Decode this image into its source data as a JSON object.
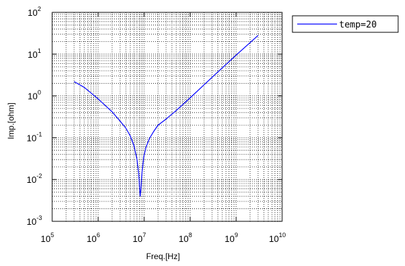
{
  "chart_data": {
    "type": "line",
    "title": "",
    "xlabel": "Freq.[Hz]",
    "ylabel": "Imp.[ohm]",
    "xscale": "log",
    "yscale": "log",
    "xlim": [
      100000,
      10000000000
    ],
    "ylim": [
      0.001,
      100
    ],
    "x_ticks": [
      {
        "base": "10",
        "exp": "5"
      },
      {
        "base": "10",
        "exp": "6"
      },
      {
        "base": "10",
        "exp": "7"
      },
      {
        "base": "10",
        "exp": "8"
      },
      {
        "base": "10",
        "exp": "9"
      },
      {
        "base": "10",
        "exp": "10"
      }
    ],
    "y_ticks": [
      {
        "base": "10",
        "exp": "-3"
      },
      {
        "base": "10",
        "exp": "-2"
      },
      {
        "base": "10",
        "exp": "-1"
      },
      {
        "base": "10",
        "exp": "0"
      },
      {
        "base": "10",
        "exp": "1"
      },
      {
        "base": "10",
        "exp": "2"
      }
    ],
    "grid": true,
    "legend_position": "outside-top-right",
    "series": [
      {
        "name": "temp=20",
        "color": "#0000ff",
        "x": [
          300000,
          500000,
          1000000,
          2000000,
          3000000,
          4000000,
          5000000,
          6000000,
          7000000,
          7600000,
          8200000,
          8500000,
          9000000,
          9800000,
          11000000,
          13000000,
          16000000,
          20000000,
          30000000,
          50000000,
          100000000,
          300000000,
          1000000000,
          3000000000
        ],
        "y": [
          2.2,
          1.6,
          0.85,
          0.42,
          0.25,
          0.17,
          0.11,
          0.065,
          0.03,
          0.014,
          0.004,
          0.006,
          0.015,
          0.035,
          0.06,
          0.095,
          0.14,
          0.2,
          0.28,
          0.45,
          0.9,
          2.8,
          9.5,
          28
        ]
      }
    ]
  }
}
